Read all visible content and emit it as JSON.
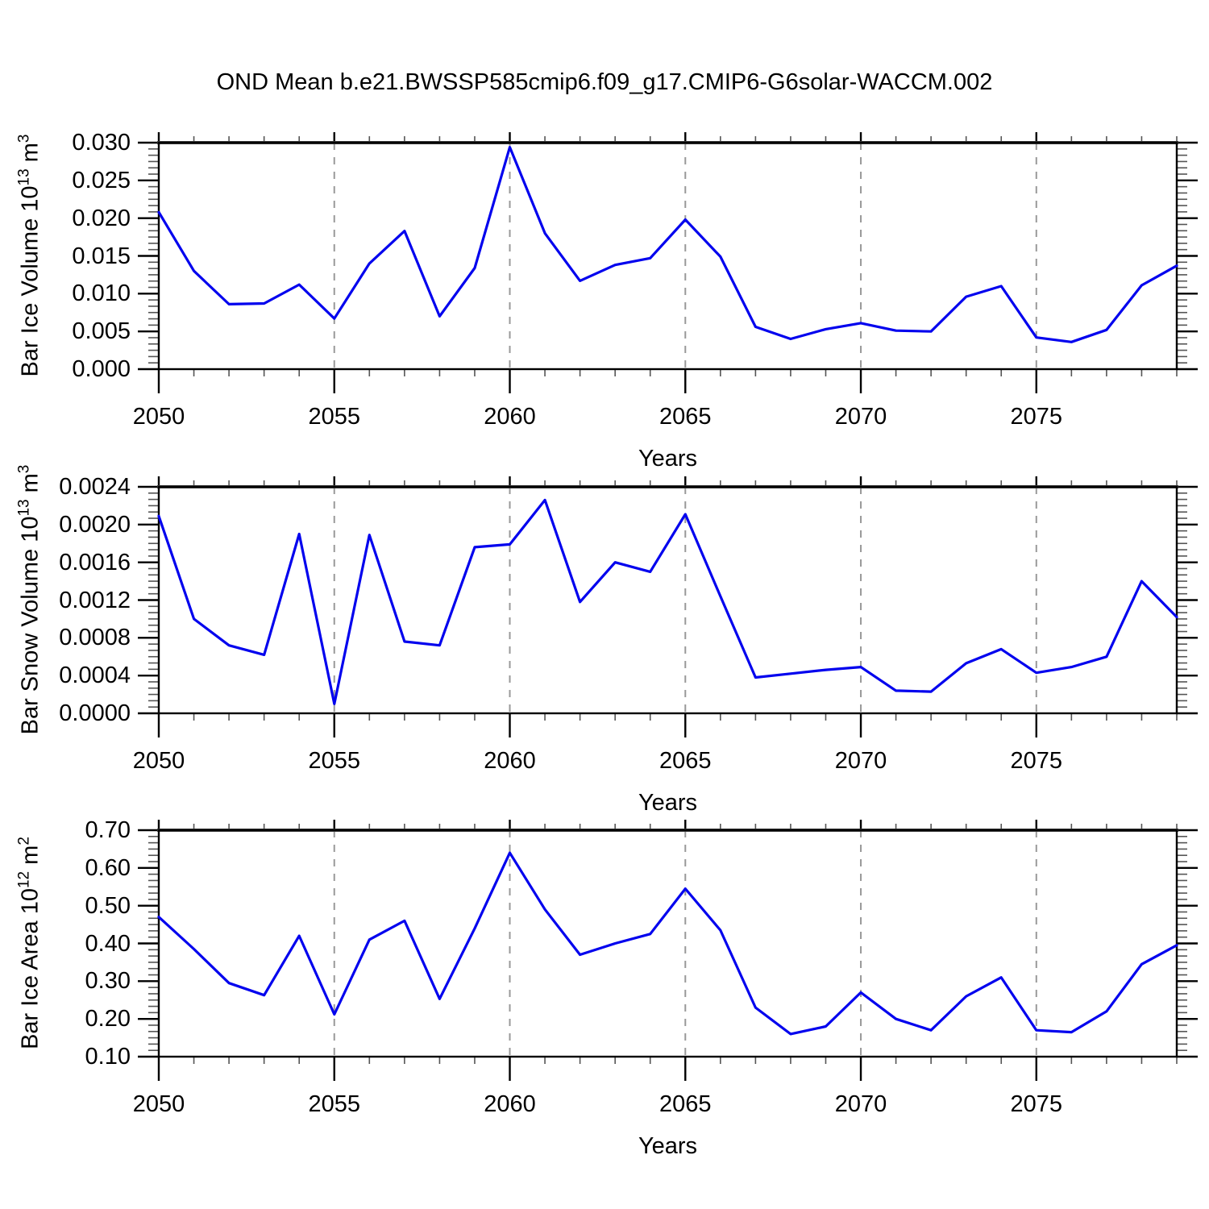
{
  "title": "OND Mean b.e21.BWSSP585cmip6.f09_g17.CMIP6-G6solar-WACCM.002",
  "line_color": "#0202ee",
  "gridline_color": "#999999",
  "frame_color": "#000000",
  "chart_data": [
    {
      "type": "line",
      "ylabel": {
        "prefix": "Bar Ice Volume 10",
        "sup": "13",
        "mid": " m",
        "sup2": "3"
      },
      "xlabel": "Years",
      "x": [
        2050,
        2051,
        2052,
        2053,
        2054,
        2055,
        2056,
        2057,
        2058,
        2059,
        2060,
        2061,
        2062,
        2063,
        2064,
        2065,
        2066,
        2067,
        2068,
        2069,
        2070,
        2071,
        2072,
        2073,
        2074,
        2075,
        2076,
        2077,
        2078,
        2079
      ],
      "values": [
        0.0208,
        0.013,
        0.0086,
        0.0087,
        0.0112,
        0.0067,
        0.014,
        0.0183,
        0.007,
        0.0134,
        0.0294,
        0.018,
        0.0117,
        0.0138,
        0.0147,
        0.0198,
        0.0149,
        0.0056,
        0.004,
        0.0053,
        0.0061,
        0.0051,
        0.005,
        0.0096,
        0.011,
        0.0042,
        0.0036,
        0.0052,
        0.0111,
        0.0137
      ],
      "ylim": [
        0.0,
        0.03
      ],
      "yticks": [
        "0.000",
        "0.005",
        "0.010",
        "0.015",
        "0.020",
        "0.025",
        "0.030"
      ],
      "xticks": [
        2050,
        2055,
        2060,
        2065,
        2070,
        2075
      ],
      "grid_x": [
        2055,
        2060,
        2065,
        2070,
        2075
      ],
      "legend": "none",
      "grid": "vertical-dashed"
    },
    {
      "type": "line",
      "ylabel": {
        "prefix": "Bar Snow Volume 10",
        "sup": "13",
        "mid": " m",
        "sup2": "3"
      },
      "xlabel": "Years",
      "x": [
        2050,
        2051,
        2052,
        2053,
        2054,
        2055,
        2056,
        2057,
        2058,
        2059,
        2060,
        2061,
        2062,
        2063,
        2064,
        2065,
        2066,
        2067,
        2068,
        2069,
        2070,
        2071,
        2072,
        2073,
        2074,
        2075,
        2076,
        2077,
        2078,
        2079
      ],
      "values": [
        0.00209,
        0.001,
        0.00072,
        0.00062,
        0.0019,
        0.0001,
        0.00189,
        0.00076,
        0.00072,
        0.00176,
        0.00179,
        0.00226,
        0.00118,
        0.0016,
        0.0015,
        0.00211,
        0.00124,
        0.00038,
        0.00042,
        0.00046,
        0.00049,
        0.00024,
        0.00023,
        0.00053,
        0.00068,
        0.00043,
        0.00049,
        0.0006,
        0.0014,
        0.00102
      ],
      "ylim": [
        0.0,
        0.0024
      ],
      "yticks": [
        "0.0000",
        "0.0004",
        "0.0008",
        "0.0012",
        "0.0016",
        "0.0020",
        "0.0024"
      ],
      "xticks": [
        2050,
        2055,
        2060,
        2065,
        2070,
        2075
      ],
      "grid_x": [
        2055,
        2060,
        2065,
        2070,
        2075
      ],
      "legend": "none",
      "grid": "vertical-dashed"
    },
    {
      "type": "line",
      "ylabel": {
        "prefix": "Bar Ice Area 10",
        "sup": "12",
        "mid": " m",
        "sup2": "2"
      },
      "xlabel": "Years",
      "x": [
        2050,
        2051,
        2052,
        2053,
        2054,
        2055,
        2056,
        2057,
        2058,
        2059,
        2060,
        2061,
        2062,
        2063,
        2064,
        2065,
        2066,
        2067,
        2068,
        2069,
        2070,
        2071,
        2072,
        2073,
        2074,
        2075,
        2076,
        2077,
        2078,
        2079
      ],
      "values": [
        0.47,
        0.385,
        0.295,
        0.263,
        0.42,
        0.212,
        0.41,
        0.46,
        0.253,
        0.44,
        0.64,
        0.49,
        0.37,
        0.4,
        0.425,
        0.545,
        0.435,
        0.23,
        0.16,
        0.18,
        0.27,
        0.2,
        0.17,
        0.26,
        0.31,
        0.17,
        0.165,
        0.22,
        0.345,
        0.395
      ],
      "ylim": [
        0.1,
        0.7
      ],
      "yticks": [
        "0.10",
        "0.20",
        "0.30",
        "0.40",
        "0.50",
        "0.60",
        "0.70"
      ],
      "xticks": [
        2050,
        2055,
        2060,
        2065,
        2070,
        2075
      ],
      "grid_x": [
        2055,
        2060,
        2065,
        2070,
        2075
      ],
      "legend": "none",
      "grid": "vertical-dashed"
    }
  ]
}
